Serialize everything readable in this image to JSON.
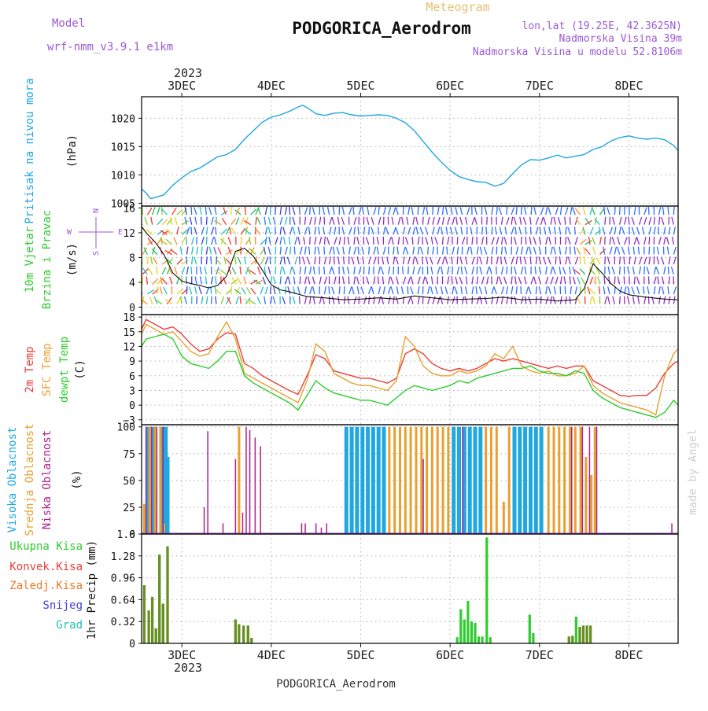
{
  "header": {
    "model_label": "Model",
    "model_value": "wrf-nmm_v3.9.1 e1km",
    "product": "Meteogram",
    "station": "PODGORICA_Aerodrom",
    "lonlat": "lon,lat (19.25E, 42.3625N)",
    "elevation": "Nadmorska Visina 39m",
    "model_elevation": "Nadmorska Visina u modelu 52.8106m"
  },
  "footer": {
    "station": "PODGORICA_Aerodrom",
    "credit": "made by Angel"
  },
  "colors": {
    "pressure": "#1fa7e0",
    "temp2m": "#e8403a",
    "sfc_temp": "#e8a030",
    "dewpoint": "#2ecc2e",
    "high_cloud": "#1fa7e0",
    "mid_cloud": "#e8a030",
    "low_cloud": "#b0208a",
    "total_precip": "#2ecc2e",
    "conv_precip": "#e8403a",
    "frz_precip": "#f07a2a",
    "snow": "#4040e0",
    "graupel": "#20c0b0",
    "wind_dir": "#9030c0"
  },
  "time_axis": {
    "year": "2023",
    "days": [
      "3DEC",
      "4DEC",
      "5DEC",
      "6DEC",
      "7DEC",
      "8DEC"
    ]
  },
  "wind_direction_legend": {
    "n": "N",
    "s": "S",
    "w": "W",
    "e": "E"
  },
  "chart_data": [
    {
      "type": "line",
      "panel": "pressure",
      "ylabel_lines": [
        "Pritisak na nivou mora"
      ],
      "unit": "(hPa)",
      "yticks": [
        1005,
        1010,
        1015,
        1020
      ],
      "ylim": [
        1004.5,
        1023.8
      ],
      "xlim": [
        2.55,
        8.55
      ],
      "grid": true,
      "series": [
        {
          "x": [
            2.55,
            2.6,
            2.65,
            2.7,
            2.8,
            2.9,
            3.0,
            3.1,
            3.2,
            3.3,
            3.4,
            3.5,
            3.6,
            3.7,
            3.8,
            3.9,
            4.0,
            4.1,
            4.2,
            4.3,
            4.35,
            4.4,
            4.5,
            4.6,
            4.7,
            4.8,
            4.9,
            5.0,
            5.1,
            5.2,
            5.3,
            5.4,
            5.5,
            5.6,
            5.7,
            5.8,
            5.9,
            6.0,
            6.1,
            6.2,
            6.3,
            6.4,
            6.5,
            6.6,
            6.7,
            6.8,
            6.9,
            7.0,
            7.1,
            7.2,
            7.3,
            7.4,
            7.5,
            7.6,
            7.7,
            7.8,
            7.9,
            8.0,
            8.1,
            8.2,
            8.3,
            8.4,
            8.5,
            8.55
          ],
          "y": [
            1007.5,
            1006.8,
            1005.8,
            1006.0,
            1006.5,
            1008.2,
            1009.5,
            1010.6,
            1011.2,
            1012.2,
            1013.2,
            1013.6,
            1014.5,
            1016.3,
            1017.8,
            1019.3,
            1020.2,
            1020.6,
            1021.2,
            1022.0,
            1022.3,
            1021.9,
            1020.8,
            1020.5,
            1020.9,
            1021.0,
            1020.6,
            1020.4,
            1020.5,
            1020.6,
            1020.5,
            1020.0,
            1019.2,
            1017.8,
            1015.9,
            1014.0,
            1012.3,
            1010.8,
            1009.7,
            1009.2,
            1008.8,
            1008.7,
            1008.0,
            1008.5,
            1010.2,
            1011.8,
            1012.7,
            1012.6,
            1013.0,
            1013.5,
            1013.0,
            1013.3,
            1013.6,
            1014.5,
            1015.0,
            1016.0,
            1016.6,
            1016.9,
            1016.5,
            1016.3,
            1016.5,
            1016.2,
            1015.2,
            1014.3
          ]
        }
      ]
    },
    {
      "type": "line",
      "panel": "wind",
      "ylabel_lines": [
        "10m Vjetar",
        "Brzina i Pravac"
      ],
      "unit": "(m/s)",
      "yticks": [
        0,
        4,
        8,
        12,
        16
      ],
      "ylim": [
        -1.2,
        16.3
      ],
      "xlim": [
        2.55,
        8.55
      ],
      "grid": true,
      "series": [
        {
          "x": [
            2.55,
            2.6,
            2.7,
            2.8,
            2.9,
            3.0,
            3.1,
            3.2,
            3.3,
            3.4,
            3.5,
            3.6,
            3.7,
            3.8,
            3.9,
            4.0,
            4.1,
            4.2,
            4.4,
            4.6,
            4.8,
            5.0,
            5.2,
            5.4,
            5.6,
            5.8,
            6.0,
            6.2,
            6.4,
            6.6,
            6.8,
            7.0,
            7.2,
            7.4,
            7.5,
            7.6,
            7.7,
            7.8,
            7.9,
            8.0,
            8.2,
            8.4,
            8.55
          ],
          "y": [
            13.0,
            12.0,
            10.5,
            8.5,
            5.5,
            4.2,
            3.8,
            3.5,
            3.1,
            3.5,
            5.0,
            9.0,
            9.5,
            8.2,
            6.0,
            3.6,
            2.8,
            2.5,
            1.7,
            1.5,
            1.2,
            1.3,
            1.5,
            1.3,
            1.8,
            1.5,
            1.2,
            1.3,
            1.4,
            1.6,
            1.2,
            1.3,
            1.0,
            1.2,
            3.0,
            7.0,
            5.5,
            3.8,
            2.6,
            2.0,
            1.6,
            1.3,
            1.2
          ]
        }
      ]
    },
    {
      "type": "line",
      "panel": "temperature",
      "ylabel_lines": [
        "2m Temp",
        "SFC Temp",
        "dewpt Temp"
      ],
      "unit": "(C)",
      "yticks": [
        -3,
        0,
        3,
        6,
        9,
        12,
        15,
        18
      ],
      "ylim": [
        -4,
        18.5
      ],
      "xlim": [
        2.55,
        8.55
      ],
      "grid": true,
      "series": [
        {
          "name": "2m Temp",
          "x": [
            2.55,
            2.6,
            2.7,
            2.8,
            2.9,
            3.0,
            3.1,
            3.2,
            3.3,
            3.4,
            3.5,
            3.6,
            3.7,
            3.8,
            3.9,
            4.0,
            4.1,
            4.2,
            4.3,
            4.4,
            4.5,
            4.6,
            4.7,
            4.8,
            4.9,
            5.0,
            5.1,
            5.2,
            5.3,
            5.4,
            5.5,
            5.6,
            5.7,
            5.8,
            5.9,
            6.0,
            6.1,
            6.2,
            6.3,
            6.4,
            6.5,
            6.6,
            6.7,
            6.8,
            6.9,
            7.0,
            7.1,
            7.2,
            7.3,
            7.4,
            7.5,
            7.6,
            7.7,
            7.8,
            7.9,
            8.0,
            8.1,
            8.2,
            8.3,
            8.4,
            8.5,
            8.55
          ],
          "y": [
            15.5,
            17.5,
            16.5,
            15.5,
            16.0,
            14.5,
            12.5,
            11.0,
            11.5,
            13.5,
            14.8,
            14.5,
            8.5,
            7.5,
            6.0,
            5.0,
            4.0,
            3.0,
            2.2,
            6.0,
            10.3,
            9.5,
            7.0,
            6.5,
            6.0,
            5.5,
            5.5,
            5.0,
            4.5,
            5.5,
            10.5,
            11.5,
            10.5,
            8.5,
            7.5,
            7.0,
            7.5,
            7.0,
            7.5,
            8.5,
            9.5,
            9.0,
            9.5,
            9.0,
            8.5,
            8.0,
            7.5,
            8.0,
            7.5,
            8.0,
            8.0,
            5.0,
            4.0,
            3.0,
            2.0,
            1.8,
            2.0,
            2.0,
            3.5,
            6.5,
            8.5,
            9.0
          ]
        },
        {
          "name": "SFC Temp",
          "x": [
            2.55,
            2.6,
            2.7,
            2.8,
            2.9,
            3.0,
            3.1,
            3.2,
            3.3,
            3.4,
            3.5,
            3.6,
            3.7,
            3.8,
            3.9,
            4.0,
            4.1,
            4.2,
            4.3,
            4.4,
            4.5,
            4.6,
            4.7,
            4.8,
            4.9,
            5.0,
            5.1,
            5.2,
            5.3,
            5.4,
            5.5,
            5.6,
            5.7,
            5.8,
            5.9,
            6.0,
            6.1,
            6.2,
            6.3,
            6.4,
            6.5,
            6.6,
            6.7,
            6.8,
            6.9,
            7.0,
            7.1,
            7.2,
            7.3,
            7.4,
            7.5,
            7.6,
            7.7,
            7.8,
            7.9,
            8.0,
            8.1,
            8.2,
            8.3,
            8.4,
            8.5,
            8.55
          ],
          "y": [
            14.5,
            16.5,
            15.5,
            14.5,
            15.0,
            13.0,
            11.0,
            10.0,
            10.5,
            14.0,
            17.0,
            13.5,
            6.5,
            5.5,
            4.5,
            3.5,
            2.5,
            1.5,
            0.5,
            5.0,
            12.5,
            11.0,
            6.5,
            5.5,
            4.5,
            4.0,
            4.0,
            3.5,
            3.0,
            5.0,
            14.0,
            12.0,
            8.0,
            6.5,
            6.0,
            6.0,
            7.0,
            6.5,
            7.0,
            8.0,
            10.5,
            9.5,
            12.0,
            8.0,
            7.0,
            6.5,
            7.0,
            6.0,
            6.0,
            6.5,
            8.0,
            4.0,
            2.5,
            1.5,
            0.5,
            0.0,
            -0.5,
            -1.0,
            -2.0,
            6.0,
            10.5,
            11.5
          ]
        },
        {
          "name": "dewpt Temp",
          "x": [
            2.55,
            2.6,
            2.7,
            2.8,
            2.9,
            3.0,
            3.1,
            3.2,
            3.3,
            3.4,
            3.5,
            3.6,
            3.7,
            3.8,
            3.9,
            4.0,
            4.1,
            4.2,
            4.3,
            4.4,
            4.5,
            4.6,
            4.7,
            4.8,
            4.9,
            5.0,
            5.1,
            5.2,
            5.3,
            5.4,
            5.5,
            5.6,
            5.7,
            5.8,
            5.9,
            6.0,
            6.1,
            6.2,
            6.3,
            6.4,
            6.5,
            6.6,
            6.7,
            6.8,
            6.9,
            7.0,
            7.1,
            7.2,
            7.3,
            7.4,
            7.5,
            7.6,
            7.7,
            7.8,
            7.9,
            8.0,
            8.1,
            8.2,
            8.3,
            8.4,
            8.5,
            8.55
          ],
          "y": [
            12.0,
            13.5,
            14.0,
            14.5,
            13.5,
            10.0,
            8.5,
            8.0,
            7.5,
            9.0,
            11.0,
            11.0,
            6.0,
            4.5,
            3.5,
            2.5,
            1.5,
            0.5,
            -1.0,
            2.0,
            5.0,
            3.5,
            2.5,
            2.0,
            1.5,
            1.0,
            1.0,
            0.5,
            0.0,
            1.5,
            3.0,
            4.0,
            3.5,
            3.0,
            3.5,
            4.0,
            5.0,
            4.5,
            5.5,
            6.0,
            6.5,
            7.0,
            7.5,
            7.5,
            8.0,
            7.0,
            6.5,
            6.5,
            6.0,
            7.0,
            6.5,
            3.0,
            1.5,
            0.5,
            -0.5,
            -1.0,
            -1.5,
            -2.0,
            -2.5,
            -1.5,
            1.0,
            0.0
          ]
        }
      ]
    },
    {
      "type": "bar",
      "panel": "clouds",
      "ylabel_lines": [
        "Visoka Oblacnost",
        "Srednja Oblacnost",
        "Niska Oblacnost"
      ],
      "unit": "(%)",
      "yticks": [
        0,
        25,
        50,
        75,
        100
      ],
      "ylim": [
        0,
        102
      ],
      "xlim": [
        2.55,
        8.55
      ],
      "grid": true,
      "series": [
        {
          "name": "Visoka Oblacnost",
          "x": [
            2.62,
            2.68,
            2.78,
            2.82,
            2.84,
            4.84,
            4.9,
            4.96,
            5.02,
            5.08,
            5.14,
            5.2,
            5.26,
            6.04,
            6.1,
            6.16,
            6.22,
            6.28,
            6.34,
            6.72,
            6.78,
            6.84,
            6.9,
            6.96,
            7.02
          ],
          "values": [
            100,
            100,
            100,
            100,
            72,
            100,
            100,
            100,
            100,
            100,
            100,
            100,
            100,
            100,
            100,
            100,
            100,
            100,
            100,
            100,
            100,
            100,
            100,
            100,
            100
          ]
        },
        {
          "name": "Srednja Oblacnost",
          "x": [
            2.58,
            2.64,
            2.7,
            2.76,
            2.8,
            3.64,
            5.32,
            5.38,
            5.44,
            5.5,
            5.56,
            5.62,
            5.68,
            5.74,
            5.8,
            5.86,
            5.92,
            5.98,
            6.4,
            6.46,
            6.52,
            6.6,
            6.66,
            7.1,
            7.16,
            7.22,
            7.28,
            7.34,
            7.4,
            7.46,
            7.52,
            7.58,
            7.62
          ],
          "values": [
            28,
            100,
            100,
            100,
            10,
            100,
            100,
            100,
            100,
            100,
            100,
            100,
            100,
            100,
            100,
            100,
            100,
            100,
            100,
            100,
            100,
            30,
            100,
            100,
            100,
            100,
            100,
            100,
            100,
            100,
            72,
            55,
            100
          ]
        },
        {
          "name": "Niska Oblacnost",
          "x": [
            2.6,
            2.66,
            2.72,
            2.79,
            3.25,
            3.29,
            3.46,
            3.6,
            3.68,
            3.72,
            3.76,
            3.82,
            3.88,
            4.34,
            4.38,
            4.5,
            4.56,
            4.62,
            5.7,
            6.14,
            7.36,
            7.48,
            7.56,
            7.64,
            8.48
          ],
          "values": [
            100,
            100,
            100,
            100,
            25,
            96,
            10,
            70,
            20,
            100,
            97,
            90,
            82,
            10,
            10,
            10,
            6,
            10,
            70,
            100,
            100,
            100,
            100,
            100,
            10
          ]
        }
      ]
    },
    {
      "type": "bar",
      "panel": "precipitation",
      "ylabel_lines": [
        "Ukupna Kisa",
        "Konvek.Kisa",
        "Zaledj.Kisa",
        "Snijeg",
        "Grad"
      ],
      "unit": "1hr Precip (mm)",
      "yticks": [
        0,
        0.32,
        0.64,
        0.96,
        1.28,
        1.6
      ],
      "ylim": [
        0,
        1.6
      ],
      "xlim": [
        2.55,
        8.55
      ],
      "grid": true,
      "series": [
        {
          "name": "Ukupna Kisa",
          "x": [
            2.58,
            2.63,
            2.67,
            2.71,
            2.75,
            2.79,
            2.84,
            3.6,
            3.64,
            3.69,
            3.74,
            3.78,
            6.08,
            6.12,
            6.16,
            6.2,
            6.24,
            6.28,
            6.32,
            6.36,
            6.41,
            6.45,
            6.89,
            6.93,
            7.33,
            7.37,
            7.41,
            7.45,
            7.49,
            7.53,
            7.57
          ],
          "values": [
            0.85,
            0.48,
            0.68,
            0.22,
            1.3,
            0.58,
            1.42,
            0.35,
            0.28,
            0.26,
            0.26,
            0.08,
            0.09,
            0.5,
            0.35,
            0.62,
            0.32,
            0.3,
            0.1,
            0.1,
            1.55,
            0.09,
            0.42,
            0.15,
            0.1,
            0.11,
            0.39,
            0.24,
            0.26,
            0.26,
            0.26
          ]
        },
        {
          "name": "Konvek.Kisa",
          "x": [
            2.58,
            2.63,
            2.67,
            2.71,
            2.75,
            2.79,
            2.84,
            3.6,
            3.64,
            3.69,
            3.74,
            3.78,
            7.33,
            7.37,
            7.45,
            7.49,
            7.53,
            7.57
          ],
          "values": [
            0.85,
            0.48,
            0.68,
            0.22,
            1.3,
            0.58,
            1.42,
            0.35,
            0.28,
            0.26,
            0.26,
            0.08,
            0.1,
            0.11,
            0.24,
            0.26,
            0.26,
            0.26
          ]
        }
      ]
    }
  ]
}
